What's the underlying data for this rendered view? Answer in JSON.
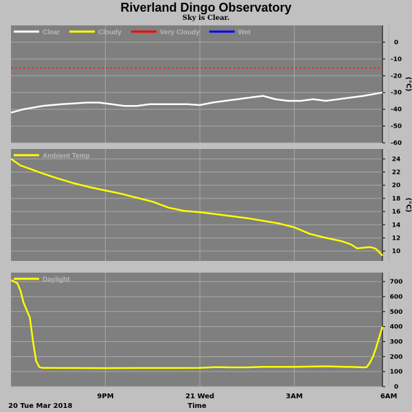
{
  "title": "Riverland Dingo Observatory",
  "subtitle": "Sky is Clear.",
  "footer": {
    "date_label": "20 Tue Mar 2018",
    "x_title": "Time",
    "x_ticks": [
      {
        "h": 3,
        "label": "9PM"
      },
      {
        "h": 6,
        "label": "21 Wed"
      },
      {
        "h": 9,
        "label": "3AM"
      },
      {
        "h": 12,
        "label": "6AM"
      }
    ]
  },
  "colors": {
    "plot_bg": "#7f7f7f",
    "page_bg": "#c0c0c0",
    "grid": "#aaaaaa",
    "clear": "#ffffff",
    "cloudy": "#ffff00",
    "very_cloudy": "#ff0000",
    "wet": "#0000ff"
  },
  "chart_data": [
    {
      "type": "line",
      "id": "sky",
      "x_unit": "hours since 6PM 20 Mar 2018",
      "xlim": [
        0.0,
        11.8
      ],
      "ylim": [
        -60,
        10
      ],
      "yticks": [
        0,
        -10,
        -20,
        -30,
        -40,
        -50,
        -60
      ],
      "ylabel": "(°C)",
      "legend": [
        {
          "name": "Clear",
          "color": "#ffffff"
        },
        {
          "name": "Cloudy",
          "color": "#ffff00"
        },
        {
          "name": "Very Cloudy",
          "color": "#ff0000"
        },
        {
          "name": "Wet",
          "color": "#0000ff"
        }
      ],
      "threshold": {
        "value": -15.5,
        "color": "#ff0000",
        "style": "dashed"
      },
      "series": [
        {
          "name": "Clear",
          "color": "#ffffff",
          "x": [
            0.0,
            0.2,
            0.4,
            0.7,
            1.0,
            1.3,
            1.6,
            2.0,
            2.4,
            2.8,
            3.2,
            3.6,
            4.0,
            4.4,
            4.8,
            5.2,
            5.6,
            6.0,
            6.4,
            6.8,
            7.2,
            7.6,
            8.0,
            8.4,
            8.8,
            9.2,
            9.6,
            10.0,
            10.4,
            10.8,
            11.2,
            11.5,
            11.8
          ],
          "y": [
            -42,
            -41,
            -40,
            -39,
            -38,
            -37.5,
            -37,
            -36.5,
            -36,
            -36,
            -37,
            -38,
            -38,
            -37,
            -37,
            -37,
            -37,
            -37.5,
            -36,
            -35,
            -34,
            -33,
            -32,
            -34,
            -35,
            -35,
            -34,
            -35,
            -34,
            -33,
            -32,
            -31,
            -30
          ]
        }
      ]
    },
    {
      "type": "line",
      "id": "ambient",
      "xlim": [
        0.0,
        11.8
      ],
      "ylim": [
        8.5,
        25.5
      ],
      "yticks": [
        24,
        22,
        20,
        18,
        16,
        14,
        12,
        10
      ],
      "ylabel": "(°C)",
      "legend": [
        {
          "name": "Ambient Temp",
          "color": "#ffff00"
        }
      ],
      "series": [
        {
          "name": "Ambient Temp",
          "color": "#ffff00",
          "x": [
            0.0,
            0.3,
            0.6,
            1.0,
            1.5,
            2.0,
            2.5,
            3.0,
            3.5,
            4.0,
            4.5,
            5.0,
            5.5,
            6.0,
            6.5,
            7.0,
            7.5,
            8.0,
            8.5,
            9.0,
            9.5,
            10.0,
            10.5,
            10.8,
            11.0,
            11.2,
            11.4,
            11.5,
            11.6,
            11.8
          ],
          "y": [
            24.0,
            23.0,
            22.5,
            21.8,
            21.0,
            20.3,
            19.7,
            19.2,
            18.7,
            18.1,
            17.5,
            16.6,
            16.1,
            15.9,
            15.6,
            15.3,
            15.0,
            14.6,
            14.2,
            13.6,
            12.6,
            12.0,
            11.5,
            11.0,
            10.4,
            10.5,
            10.6,
            10.5,
            10.3,
            9.3
          ]
        }
      ]
    },
    {
      "type": "line",
      "id": "daylight",
      "xlim": [
        0.0,
        11.8
      ],
      "ylim": [
        0,
        760
      ],
      "yticks": [
        700,
        600,
        500,
        400,
        300,
        200,
        100,
        0
      ],
      "legend": [
        {
          "name": "Daylight",
          "color": "#ffff00"
        }
      ],
      "series": [
        {
          "name": "Daylight",
          "color": "#ffff00",
          "x": [
            0.0,
            0.1,
            0.2,
            0.3,
            0.4,
            0.5,
            0.6,
            0.7,
            0.8,
            0.9,
            1.0,
            1.2,
            1.5,
            2.0,
            3.0,
            4.0,
            5.0,
            6.0,
            6.5,
            7.0,
            7.5,
            8.0,
            9.0,
            10.0,
            11.0,
            11.2,
            11.3,
            11.4,
            11.5,
            11.6,
            11.7,
            11.8
          ],
          "y": [
            710,
            700,
            690,
            640,
            560,
            510,
            460,
            300,
            170,
            130,
            125,
            125,
            124,
            124,
            123,
            124,
            124,
            125,
            130,
            128,
            128,
            132,
            132,
            135,
            130,
            128,
            130,
            160,
            200,
            260,
            330,
            400
          ]
        }
      ]
    }
  ]
}
